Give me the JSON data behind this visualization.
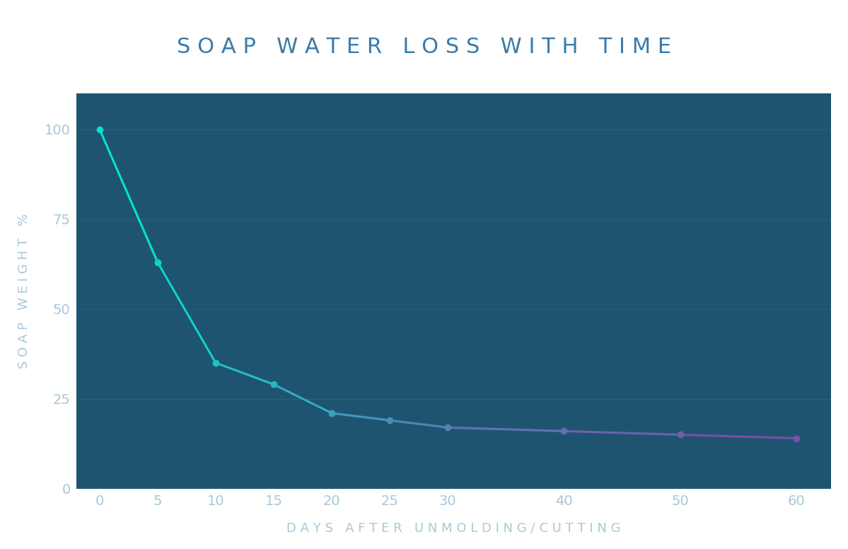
{
  "title": "S O A P   W A T E R   L O S S   W I T H   T I M E",
  "xlabel": "D A Y S   A F T E R   U N M O L D I N G / C U T T I N G",
  "ylabel": "S O A P   W E I G H T   %",
  "x": [
    0,
    5,
    10,
    15,
    20,
    25,
    30,
    40,
    50,
    60
  ],
  "y": [
    100,
    63,
    35,
    29,
    21,
    19,
    17,
    16,
    15,
    14
  ],
  "bg_color": "#1f5470",
  "title_area_color": "#ffffff",
  "line_color_start": "#00e5cc",
  "line_color_end": "#7b4fa6",
  "axis_label_color": "#a8c8d8",
  "tick_label_color": "#a8c8d8",
  "tick_color": "#a8c8d8",
  "title_color": "#3a7aaa",
  "grid_color": "#2a6080",
  "ylim": [
    0,
    110
  ],
  "xlim": [
    -2,
    63
  ],
  "yticks": [
    0,
    25,
    50,
    75,
    100
  ],
  "xticks": [
    0,
    5,
    10,
    15,
    20,
    25,
    30,
    40,
    50,
    60
  ],
  "title_fontsize": 22,
  "axis_label_fontsize": 13,
  "tick_fontsize": 14,
  "marker_size": 6,
  "line_width": 2.2
}
